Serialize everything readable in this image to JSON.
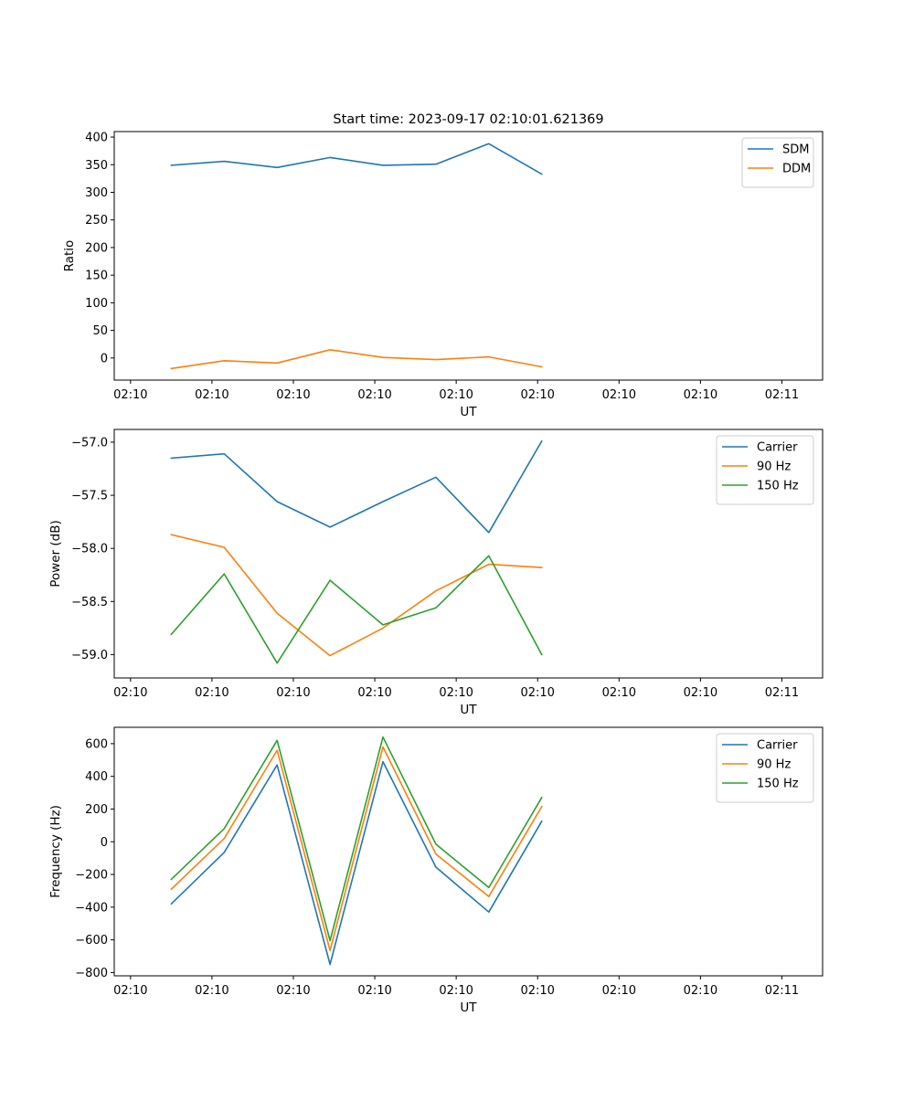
{
  "chart_data": [
    {
      "type": "line",
      "title": "Start time: 2023-09-17 02:10:01.621369",
      "xlabel": "UT",
      "ylabel": "Ratio",
      "ylim": [
        -40,
        410
      ],
      "yticks": [
        0,
        50,
        100,
        150,
        200,
        250,
        300,
        350,
        400
      ],
      "xlim": [
        -0.2,
        8.5
      ],
      "xticks": [
        0,
        1,
        2,
        3,
        4,
        5,
        6,
        7,
        8
      ],
      "xtick_labels": [
        "02:10",
        "02:10",
        "02:10",
        "02:10",
        "02:10",
        "02:10",
        "02:10",
        "02:10",
        "02:11"
      ],
      "x": [
        0.5,
        1.15,
        1.8,
        2.45,
        3.1,
        3.75,
        4.4,
        5.05
      ],
      "legend_position": "top-right",
      "series": [
        {
          "name": "SDM",
          "color": "#1f77b4",
          "values": [
            349,
            356,
            345,
            363,
            349,
            351,
            388,
            333
          ]
        },
        {
          "name": "DDM",
          "color": "#ff7f0e",
          "values": [
            -19,
            -5,
            -9,
            15,
            1,
            -3,
            2,
            -16
          ]
        }
      ]
    },
    {
      "type": "line",
      "title": "",
      "xlabel": "UT",
      "ylabel": "Power (dB)",
      "ylim": [
        -59.22,
        -56.88
      ],
      "yticks": [
        -59.0,
        -58.5,
        -58.0,
        -57.5,
        -57.0
      ],
      "ytick_labels": [
        "−59.0",
        "−58.5",
        "−58.0",
        "−57.5",
        "−57.0"
      ],
      "xlim": [
        -0.2,
        8.5
      ],
      "xticks": [
        0,
        1,
        2,
        3,
        4,
        5,
        6,
        7,
        8
      ],
      "xtick_labels": [
        "02:10",
        "02:10",
        "02:10",
        "02:10",
        "02:10",
        "02:10",
        "02:10",
        "02:10",
        "02:11"
      ],
      "x": [
        0.5,
        1.15,
        1.8,
        2.45,
        3.1,
        3.75,
        4.4,
        5.05
      ],
      "legend_position": "top-right",
      "series": [
        {
          "name": "Carrier",
          "color": "#1f77b4",
          "values": [
            -57.15,
            -57.11,
            -57.56,
            -57.8,
            -57.56,
            -57.33,
            -57.85,
            -56.99
          ]
        },
        {
          "name": "90 Hz",
          "color": "#ff7f0e",
          "values": [
            -57.87,
            -57.99,
            -58.61,
            -59.01,
            -58.75,
            -58.4,
            -58.15,
            -58.18
          ]
        },
        {
          "name": "150 Hz",
          "color": "#2ca02c",
          "values": [
            -58.81,
            -58.24,
            -59.08,
            -58.3,
            -58.72,
            -58.56,
            -58.07,
            -59.0
          ]
        }
      ]
    },
    {
      "type": "line",
      "title": "",
      "xlabel": "UT",
      "ylabel": "Frequency (Hz)",
      "ylim": [
        -820,
        700
      ],
      "yticks": [
        -800,
        -600,
        -400,
        -200,
        0,
        200,
        400,
        600
      ],
      "ytick_labels": [
        "−800",
        "−600",
        "−400",
        "−200",
        "0",
        "200",
        "400",
        "600"
      ],
      "xlim": [
        -0.2,
        8.5
      ],
      "xticks": [
        0,
        1,
        2,
        3,
        4,
        5,
        6,
        7,
        8
      ],
      "xtick_labels": [
        "02:10",
        "02:10",
        "02:10",
        "02:10",
        "02:10",
        "02:10",
        "02:10",
        "02:10",
        "02:11"
      ],
      "x": [
        0.5,
        1.15,
        1.8,
        2.45,
        3.1,
        3.75,
        4.4,
        5.05
      ],
      "legend_position": "top-right",
      "series": [
        {
          "name": "Carrier",
          "color": "#1f77b4",
          "values": [
            -380,
            -65,
            470,
            -750,
            490,
            -155,
            -430,
            125
          ]
        },
        {
          "name": "90 Hz",
          "color": "#ff7f0e",
          "values": [
            -290,
            20,
            560,
            -665,
            580,
            -75,
            -335,
            215
          ]
        },
        {
          "name": "150 Hz",
          "color": "#2ca02c",
          "values": [
            -230,
            80,
            620,
            -605,
            640,
            -15,
            -280,
            270
          ]
        }
      ]
    }
  ]
}
